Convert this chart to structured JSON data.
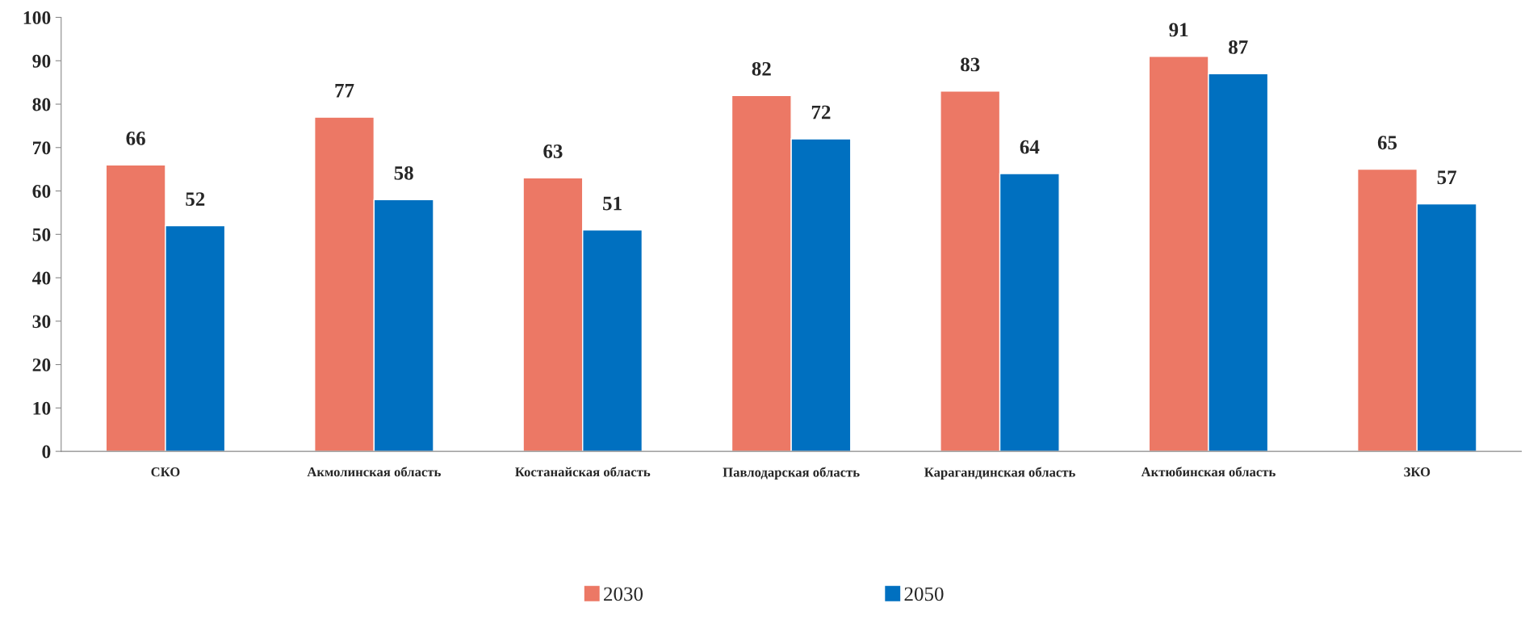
{
  "chart_data": {
    "type": "bar",
    "categories": [
      "СКО",
      "Акмолинская область",
      "Костанайская область",
      "Павлодарская область",
      "Карагандинская область",
      "Актюбинская область",
      "ЗКО"
    ],
    "series": [
      {
        "name": "2030",
        "color": "#ec7865",
        "values": [
          66,
          77,
          63,
          82,
          83,
          91,
          65
        ]
      },
      {
        "name": "2050",
        "color": "#0070c0",
        "values": [
          52,
          58,
          51,
          72,
          64,
          87,
          57
        ]
      }
    ],
    "ylim": [
      0,
      100
    ],
    "yticks": [
      0,
      10,
      20,
      30,
      40,
      50,
      60,
      70,
      80,
      90,
      100
    ],
    "data_labels": true,
    "grid": false,
    "legend": "bottom"
  }
}
